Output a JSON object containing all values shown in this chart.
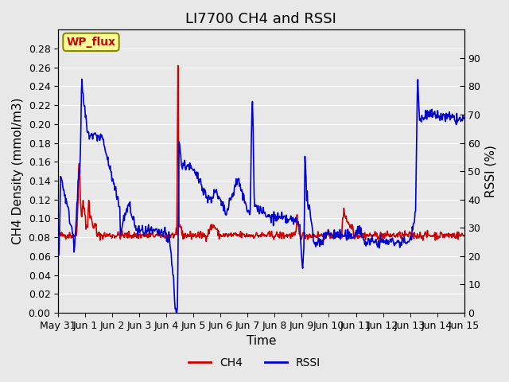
{
  "title": "LI7700 CH4 and RSSI",
  "xlabel": "Time",
  "ylabel_left": "CH4 Density (mmol/m3)",
  "ylabel_right": "RSSI (%)",
  "ch4_color": "#cc0000",
  "rssi_color": "#0000cc",
  "ylim_left": [
    0.0,
    0.3
  ],
  "ylim_right": [
    0,
    100
  ],
  "yticks_left": [
    0.0,
    0.02,
    0.04,
    0.06,
    0.08,
    0.1,
    0.12,
    0.14,
    0.16,
    0.18,
    0.2,
    0.22,
    0.24,
    0.26,
    0.28
  ],
  "yticks_right": [
    0,
    10,
    20,
    30,
    40,
    50,
    60,
    70,
    80,
    90
  ],
  "xtick_labels": [
    "May 31",
    "Jun 1",
    "Jun 2",
    "Jun 3",
    "Jun 4",
    "Jun 5",
    "Jun 6",
    "Jun 7",
    "Jun 8",
    "Jun 9",
    "Jun 10",
    "Jun 11",
    "Jun 12",
    "Jun 13",
    "Jun 14",
    "Jun 15"
  ],
  "legend_labels": [
    "CH4",
    "RSSI"
  ],
  "bg_color": "#e8e8e8",
  "plot_bg_color": "#e8e8e8",
  "grid_color": "#ffffff",
  "box_label": "WP_flux",
  "box_label_color": "#cc0000",
  "box_bg_color": "#ffff99",
  "box_edge_color": "#888800",
  "title_fontsize": 13,
  "axis_fontsize": 11,
  "tick_fontsize": 9,
  "legend_fontsize": 10,
  "line_width": 1.2
}
